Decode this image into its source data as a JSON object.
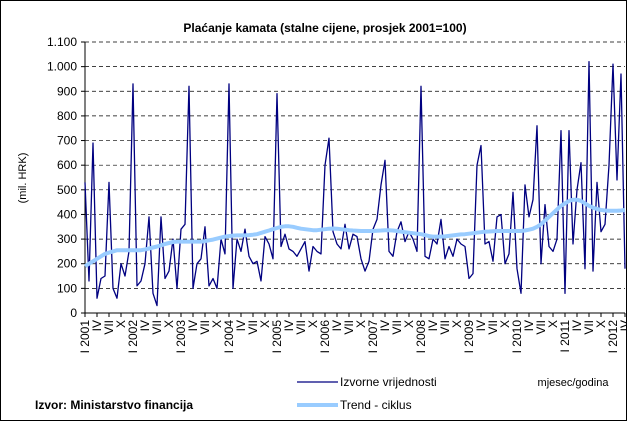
{
  "chart_data": {
    "type": "line",
    "title": "Plaćanje kamata (stalne cijene, prosjek 2001=100)",
    "ylabel": "(mil. HRK)",
    "xlabel": "mjesec/godina",
    "source": "Izvor: Ministarstvo financija",
    "categories": [
      "I 2001",
      null,
      null,
      "IV",
      null,
      null,
      "VII",
      null,
      null,
      "X",
      null,
      null,
      "I 2002",
      null,
      null,
      "IV",
      null,
      null,
      "VII",
      null,
      null,
      "X",
      null,
      null,
      "I 2003",
      null,
      null,
      "IV",
      null,
      null,
      "VII",
      null,
      null,
      "X",
      null,
      null,
      "I 2004",
      null,
      null,
      "IV",
      null,
      null,
      "VII",
      null,
      null,
      "X",
      null,
      null,
      "I 2005",
      null,
      null,
      "IV",
      null,
      null,
      "VII",
      null,
      null,
      "X",
      null,
      null,
      "I 2006",
      null,
      null,
      "IV",
      null,
      null,
      "VII",
      null,
      null,
      "X",
      null,
      null,
      "I 2007",
      null,
      null,
      "IV",
      null,
      null,
      "VII",
      null,
      null,
      "X",
      null,
      null,
      "I 2008",
      null,
      null,
      "IV",
      null,
      null,
      "VII",
      null,
      null,
      "X",
      null,
      null,
      "I 2009",
      null,
      null,
      "IV",
      null,
      null,
      "VII",
      null,
      null,
      "X",
      null,
      null,
      "I 2010",
      null,
      null,
      "IV",
      null,
      null,
      "VII",
      null,
      null,
      "X",
      null,
      null,
      "I 2011",
      null,
      null,
      "IV",
      null,
      null,
      "VII",
      null,
      null,
      "X",
      null,
      null,
      "I 2012",
      null,
      null,
      "IV"
    ],
    "series": [
      {
        "name": "Izvorne vrijednosti",
        "color": "#000080",
        "width": 1.3,
        "values": [
          530,
          130,
          690,
          60,
          140,
          150,
          530,
          100,
          60,
          200,
          150,
          250,
          930,
          110,
          130,
          200,
          390,
          80,
          30,
          390,
          140,
          170,
          300,
          100,
          340,
          360,
          920,
          100,
          200,
          220,
          350,
          110,
          140,
          100,
          300,
          240,
          930,
          100,
          300,
          250,
          340,
          230,
          200,
          210,
          130,
          310,
          280,
          220,
          890,
          270,
          320,
          260,
          250,
          230,
          260,
          290,
          170,
          270,
          250,
          240,
          600,
          710,
          330,
          280,
          260,
          360,
          260,
          320,
          310,
          220,
          170,
          210,
          340,
          380,
          520,
          620,
          250,
          230,
          330,
          370,
          290,
          330,
          300,
          250,
          920,
          230,
          220,
          300,
          280,
          380,
          220,
          270,
          230,
          300,
          280,
          270,
          140,
          160,
          600,
          680,
          280,
          290,
          210,
          390,
          400,
          200,
          240,
          490,
          180,
          80,
          520,
          390,
          460,
          760,
          200,
          440,
          270,
          250,
          300,
          740,
          80,
          740,
          280,
          500,
          610,
          180,
          1020,
          170,
          530,
          330,
          360,
          600,
          1010,
          540,
          970,
          180
        ]
      },
      {
        "name": "Trend - ciklus",
        "color": "#99ccff",
        "width": 4,
        "values": [
          190,
          200,
          210,
          220,
          230,
          240,
          245,
          250,
          255,
          255,
          255,
          255,
          255,
          255,
          255,
          258,
          262,
          266,
          270,
          275,
          280,
          284,
          288,
          290,
          290,
          290,
          290,
          290,
          290,
          290,
          292,
          295,
          298,
          302,
          306,
          310,
          312,
          314,
          315,
          315,
          315,
          316,
          318,
          320,
          325,
          330,
          335,
          340,
          345,
          350,
          352,
          352,
          350,
          346,
          342,
          340,
          338,
          336,
          336,
          338,
          340,
          342,
          343,
          342,
          340,
          338,
          336,
          335,
          334,
          333,
          333,
          333,
          333,
          334,
          335,
          336,
          336,
          335,
          333,
          330,
          328,
          326,
          324,
          322,
          320,
          316,
          312,
          310,
          310,
          310,
          311,
          313,
          315,
          317,
          319,
          320,
          322,
          324,
          326,
          328,
          330,
          331,
          332,
          333,
          333,
          333,
          333,
          333,
          333,
          333,
          335,
          338,
          342,
          350,
          360,
          375,
          390,
          405,
          420,
          435,
          445,
          455,
          460,
          460,
          455,
          445,
          435,
          428,
          422,
          418,
          416,
          415,
          415,
          415,
          416,
          418
        ]
      }
    ],
    "ylim": [
      0,
      1100
    ],
    "yticks": [
      0,
      100,
      200,
      300,
      400,
      500,
      600,
      700,
      800,
      900,
      {
        "value": 1000,
        "label": "1.000"
      },
      {
        "value": 1100,
        "label": "1.100"
      }
    ],
    "grid": true
  }
}
